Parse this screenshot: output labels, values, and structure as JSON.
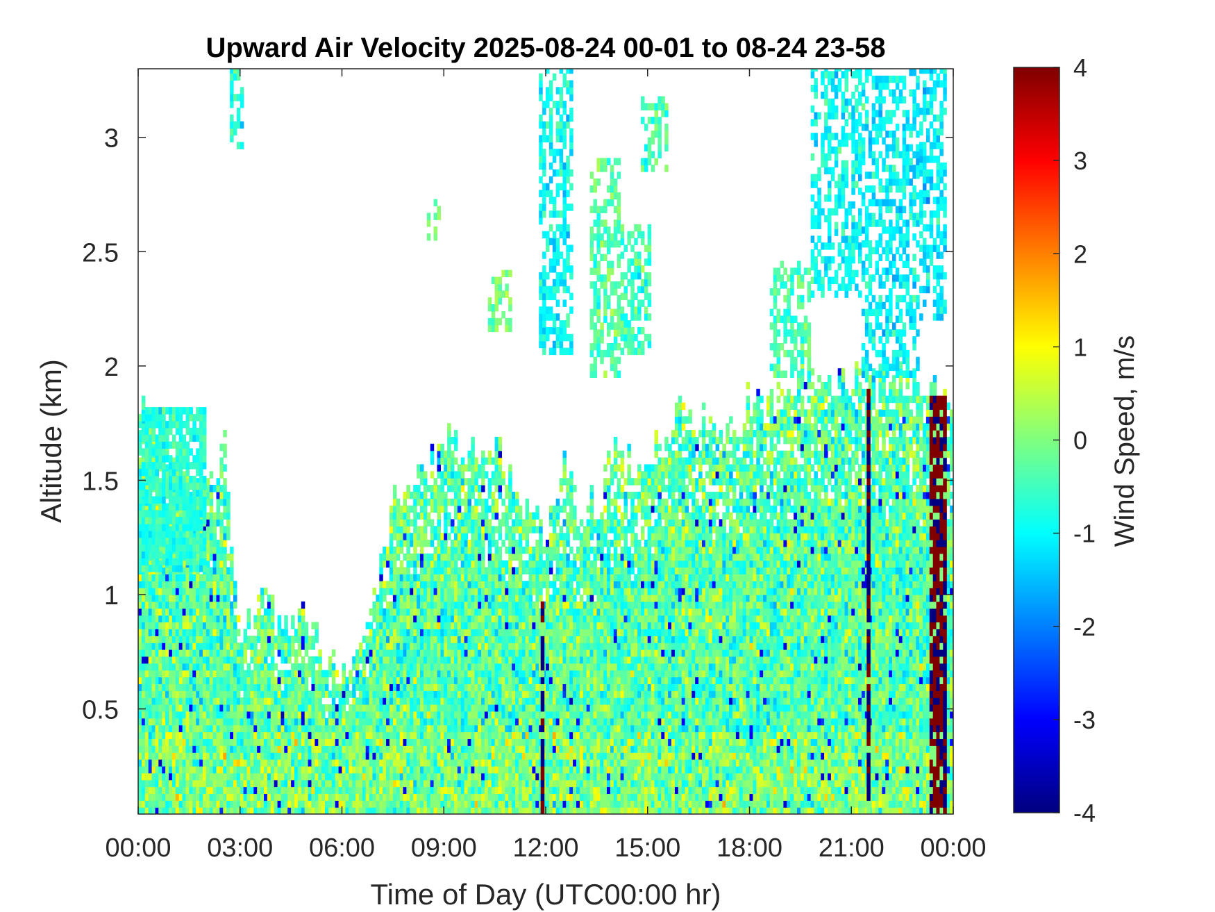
{
  "chart_data": {
    "type": "heatmap",
    "title": "Upward Air Velocity 2025-08-24 00-01 to 08-24 23-58",
    "xlabel": "Time of Day (UTC00:00 hr)",
    "ylabel": "Altitude (km)",
    "xlim": [
      0,
      24
    ],
    "ylim": [
      0.04,
      3.3
    ],
    "x_ticks": [
      0,
      3,
      6,
      9,
      12,
      15,
      18,
      21,
      24
    ],
    "x_tick_labels": [
      "00:00",
      "03:00",
      "06:00",
      "09:00",
      "12:00",
      "15:00",
      "18:00",
      "21:00",
      "00:00"
    ],
    "y_ticks": [
      0.5,
      1,
      1.5,
      2,
      2.5,
      3
    ],
    "y_tick_labels": [
      "0.5",
      "1",
      "1.5",
      "2",
      "2.5",
      "3"
    ],
    "colorbar": {
      "label": "Wind Speed, m/s",
      "range": [
        -4,
        4
      ],
      "ticks": [
        4,
        3,
        2,
        1,
        0,
        -1,
        -2,
        -3,
        -4
      ],
      "tick_labels": [
        "4",
        "3",
        "2",
        "1",
        "0",
        "-1",
        "-2",
        "-3",
        "-4"
      ],
      "colormap": "jet"
    },
    "grid": false,
    "missing_data_color": "#ffffff",
    "data_extent_top_km": [
      [
        0.0,
        1.8
      ],
      [
        0.5,
        1.75
      ],
      [
        1.0,
        1.55
      ],
      [
        1.5,
        1.5
      ],
      [
        2.0,
        1.5
      ],
      [
        2.5,
        1.65
      ],
      [
        3.0,
        0.7
      ],
      [
        3.5,
        1.0
      ],
      [
        4.0,
        0.9
      ],
      [
        4.5,
        0.9
      ],
      [
        5.0,
        0.85
      ],
      [
        5.5,
        0.7
      ],
      [
        6.0,
        0.65
      ],
      [
        6.5,
        0.85
      ],
      [
        7.0,
        1.0
      ],
      [
        7.5,
        1.45
      ],
      [
        8.0,
        1.45
      ],
      [
        8.5,
        1.55
      ],
      [
        9.0,
        1.7
      ],
      [
        9.5,
        1.65
      ],
      [
        10.0,
        1.6
      ],
      [
        10.5,
        1.65
      ],
      [
        11.0,
        1.5
      ],
      [
        11.5,
        1.3
      ],
      [
        12.0,
        1.3
      ],
      [
        12.5,
        1.55
      ],
      [
        13.0,
        1.35
      ],
      [
        13.5,
        1.4
      ],
      [
        14.0,
        1.65
      ],
      [
        14.5,
        1.55
      ],
      [
        15.0,
        1.6
      ],
      [
        15.5,
        1.7
      ],
      [
        16.0,
        1.8
      ],
      [
        16.5,
        1.75
      ],
      [
        17.0,
        1.75
      ],
      [
        17.5,
        1.7
      ],
      [
        18.0,
        1.85
      ],
      [
        18.5,
        1.8
      ],
      [
        19.0,
        1.85
      ],
      [
        19.5,
        2.0
      ],
      [
        20.0,
        1.95
      ],
      [
        20.5,
        1.9
      ],
      [
        21.0,
        1.9
      ],
      [
        21.5,
        1.9
      ],
      [
        22.0,
        1.9
      ],
      [
        22.5,
        1.9
      ],
      [
        23.0,
        1.9
      ],
      [
        23.5,
        1.85
      ],
      [
        24.0,
        1.85
      ]
    ],
    "upper_layer_patches": [
      {
        "t_start": 2.7,
        "t_end": 3.1,
        "alt_min": 2.95,
        "alt_max": 3.3,
        "mean_speed": -0.8
      },
      {
        "t_start": 8.5,
        "t_end": 8.8,
        "alt_min": 2.55,
        "alt_max": 2.7,
        "mean_speed": 0.0
      },
      {
        "t_start": 10.3,
        "t_end": 10.9,
        "alt_min": 2.15,
        "alt_max": 2.4,
        "mean_speed": 0.0
      },
      {
        "t_start": 11.8,
        "t_end": 12.7,
        "alt_min": 2.05,
        "alt_max": 3.3,
        "mean_speed": -0.9
      },
      {
        "t_start": 13.3,
        "t_end": 14.1,
        "alt_min": 1.95,
        "alt_max": 2.9,
        "mean_speed": -0.3
      },
      {
        "t_start": 14.2,
        "t_end": 15.0,
        "alt_min": 2.05,
        "alt_max": 2.6,
        "mean_speed": -0.5
      },
      {
        "t_start": 14.8,
        "t_end": 15.5,
        "alt_min": 2.85,
        "alt_max": 3.15,
        "mean_speed": -0.4
      },
      {
        "t_start": 18.6,
        "t_end": 19.8,
        "alt_min": 1.95,
        "alt_max": 2.45,
        "mean_speed": -0.4
      },
      {
        "t_start": 19.8,
        "t_end": 21.3,
        "alt_min": 2.3,
        "alt_max": 3.3,
        "mean_speed": -0.9
      },
      {
        "t_start": 21.3,
        "t_end": 23.0,
        "alt_min": 1.95,
        "alt_max": 3.3,
        "mean_speed": -1.0
      },
      {
        "t_start": 23.0,
        "t_end": 23.8,
        "alt_min": 2.2,
        "alt_max": 3.3,
        "mean_speed": -1.1
      }
    ],
    "notable_features": [
      {
        "t_start": 0.0,
        "t_end": 2.0,
        "alt_min": 1.1,
        "alt_max": 1.8,
        "mean_speed": -0.7
      },
      {
        "t_start": 11.85,
        "t_end": 11.95,
        "alt_min": 0.04,
        "alt_max": 0.95,
        "mean_speed": -4.0
      },
      {
        "t_start": 21.45,
        "t_end": 21.55,
        "alt_min": 0.04,
        "alt_max": 1.9,
        "mean_speed": -4.0
      },
      {
        "t_start": 23.3,
        "t_end": 23.75,
        "alt_min": 0.04,
        "alt_max": 1.85,
        "mean_speed": 4.0
      }
    ]
  }
}
